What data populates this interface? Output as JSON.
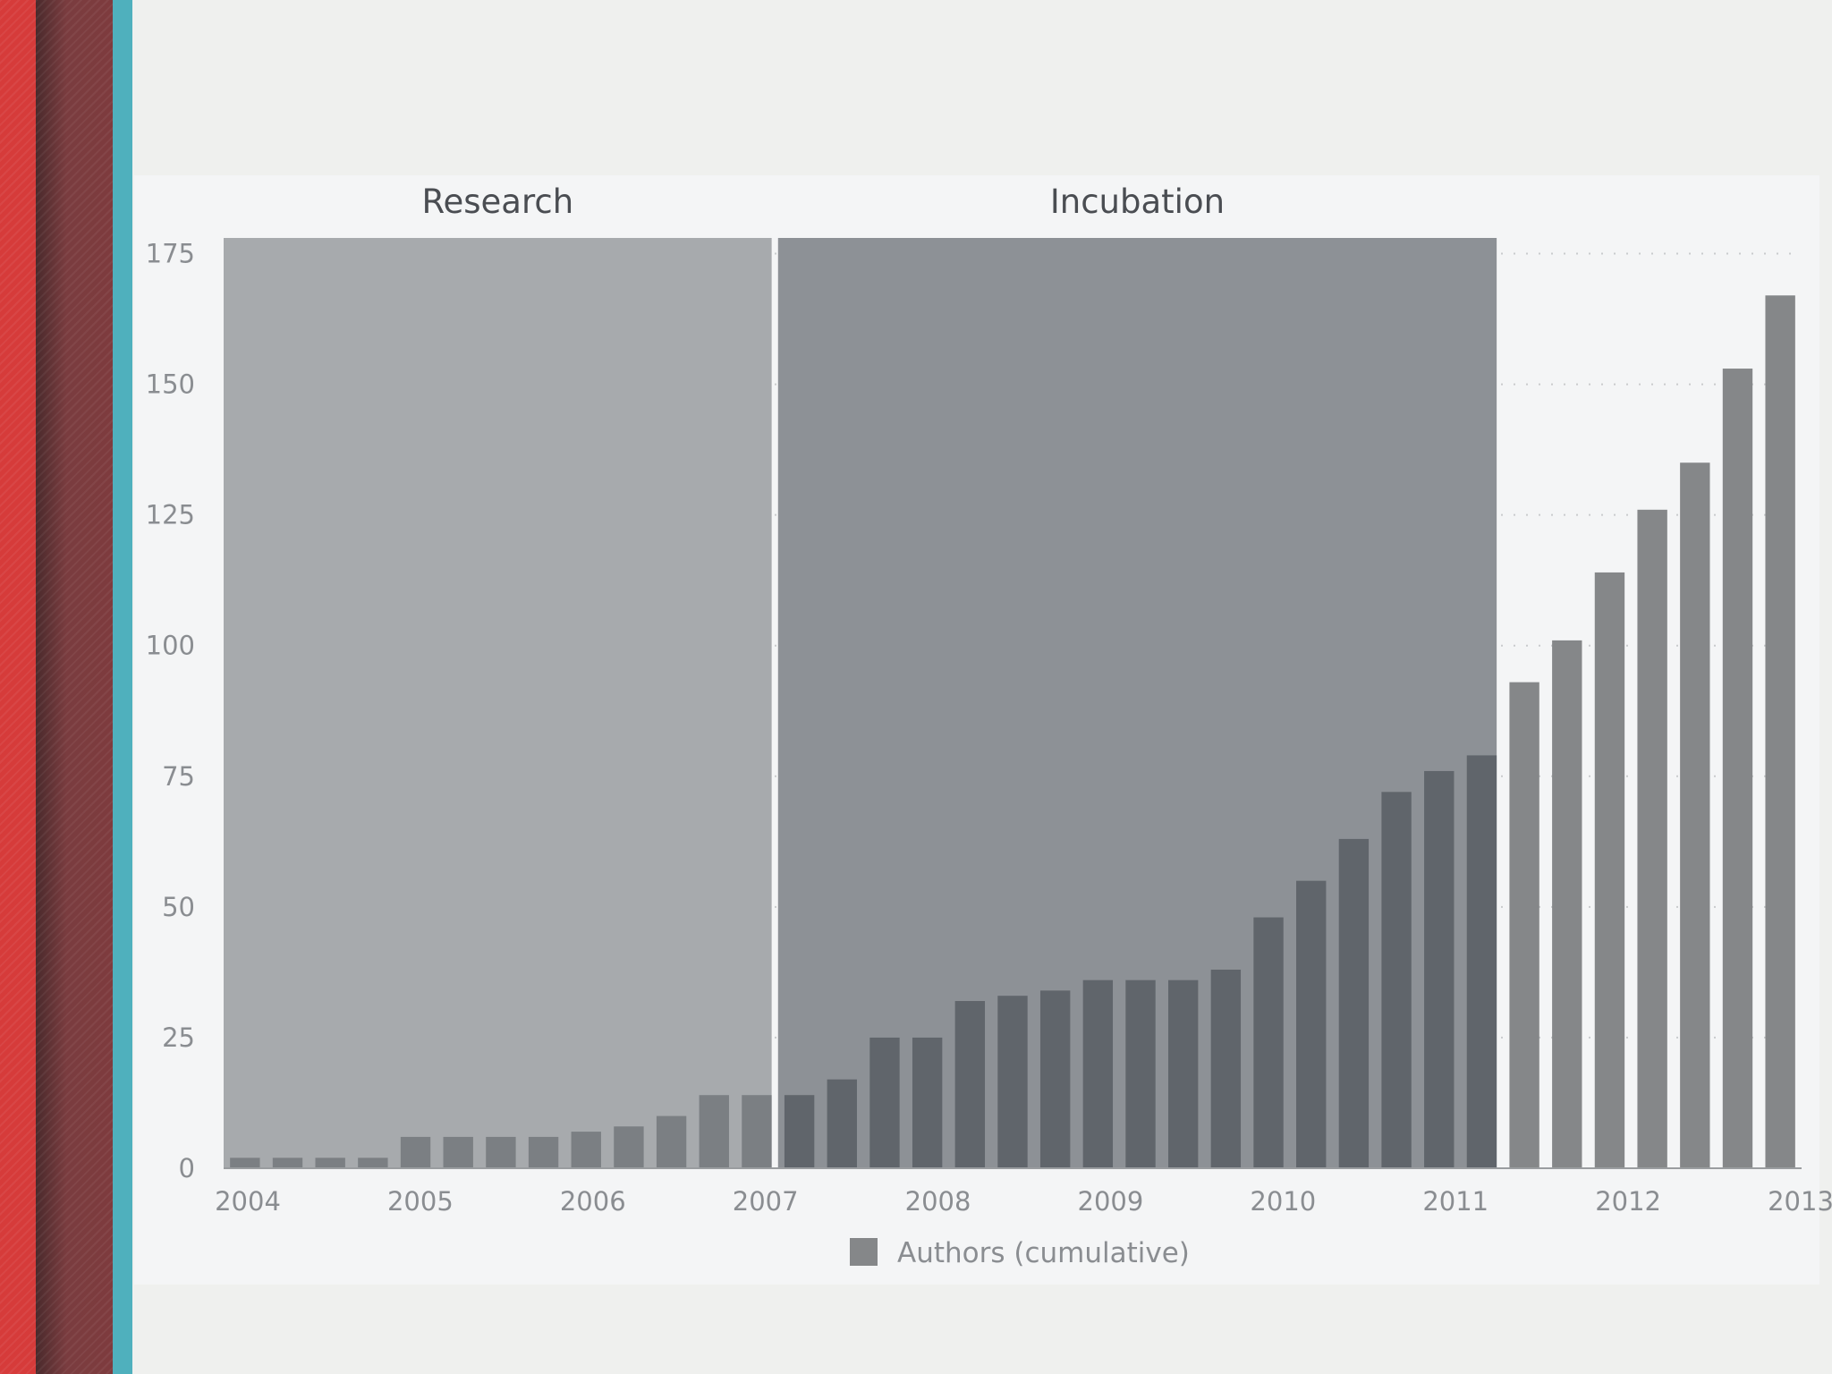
{
  "chart_data": {
    "type": "bar",
    "series": [
      {
        "name": "Authors (cumulative)",
        "values": [
          2,
          2,
          2,
          2,
          6,
          6,
          6,
          6,
          7,
          8,
          10,
          14,
          14,
          14,
          17,
          25,
          25,
          32,
          33,
          34,
          36,
          36,
          36,
          38,
          48,
          55,
          63,
          72,
          76,
          79,
          93,
          101,
          114,
          126,
          135,
          153,
          167
        ]
      }
    ],
    "x_tick_labels": [
      "2004",
      "2005",
      "2006",
      "2007",
      "2008",
      "2009",
      "2010",
      "2011",
      "2012",
      "2013"
    ],
    "y_ticks": [
      0,
      25,
      50,
      75,
      100,
      125,
      150,
      175
    ],
    "ylim": [
      0,
      178
    ],
    "grid": "horizontal dotted",
    "legend": "bottom-center",
    "bands": [
      {
        "label": "Research",
        "from_bar": 0,
        "to_bar": 12
      },
      {
        "label": "Incubation",
        "from_bar": 13,
        "to_bar": 29
      }
    ],
    "colors": {
      "bar": "#858789",
      "research_band": "#a7aaad",
      "incubation_band": "#8d9196",
      "bar_in_research": "#7b7f83",
      "bar_in_incubation": "#60656b"
    }
  }
}
